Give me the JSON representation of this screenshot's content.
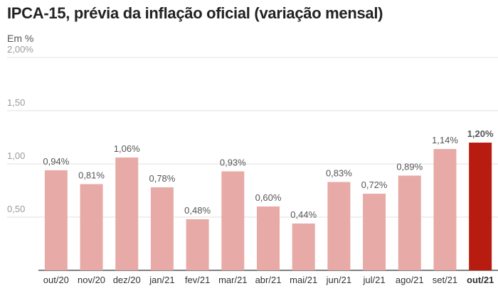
{
  "title": "IPCA-15, prévia da inflação oficial (variação mensal)",
  "unit_label": "Em %",
  "colors": {
    "bar": "#e8aaa6",
    "highlight": "#b81c10"
  },
  "chart_data": {
    "type": "bar",
    "title": "IPCA-15, prévia da inflação oficial (variação mensal)",
    "ylabel": "Em %",
    "ylim": [
      0,
      2.0
    ],
    "yticks": [
      0.5,
      1.0,
      1.5,
      2.0
    ],
    "ytick_labels": [
      "0,50",
      "1,00",
      "1,50",
      "2,00%"
    ],
    "grid": true,
    "categories": [
      "out/20",
      "nov/20",
      "dez/20",
      "jan/21",
      "fev/21",
      "mar/21",
      "abr/21",
      "mai/21",
      "jun/21",
      "jul/21",
      "ago/21",
      "set/21",
      "out/21"
    ],
    "values": [
      0.94,
      0.81,
      1.06,
      0.78,
      0.48,
      0.93,
      0.6,
      0.44,
      0.83,
      0.72,
      0.89,
      1.14,
      1.2
    ],
    "value_labels": [
      "0,94%",
      "0,81%",
      "1,06%",
      "0,78%",
      "0,48%",
      "0,93%",
      "0,60%",
      "0,44%",
      "0,83%",
      "0,72%",
      "0,89%",
      "1,14%",
      "1,20%"
    ],
    "highlight_category": "out/21"
  }
}
